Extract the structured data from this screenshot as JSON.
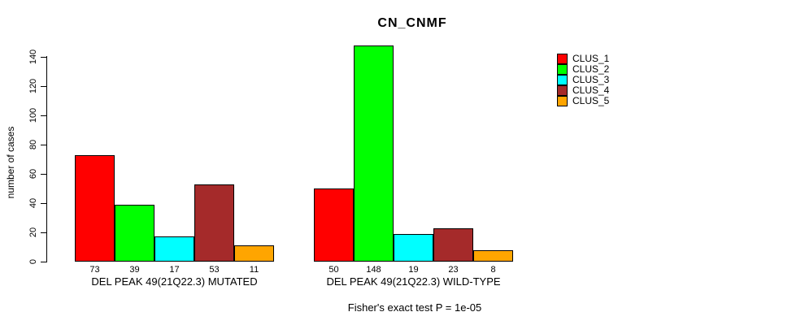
{
  "title": "CN_CNMF",
  "footer": "Fisher's exact test P = 1e-05",
  "chart_data": {
    "type": "bar",
    "title": "CN_CNMF",
    "xlabel": "",
    "ylabel": "number of cases",
    "ylim": [
      0,
      140
    ],
    "yticks": [
      0,
      20,
      40,
      60,
      80,
      100,
      120,
      140
    ],
    "grid": false,
    "legend_position": "right-outside",
    "bar_value_labels": true,
    "categories": [
      "DEL PEAK 49(21Q22.3) MUTATED",
      "DEL PEAK 49(21Q22.3) WILD-TYPE"
    ],
    "series": [
      {
        "name": "CLUS_1",
        "color": "#ff0000",
        "values": [
          73,
          50
        ]
      },
      {
        "name": "CLUS_2",
        "color": "#00ff00",
        "values": [
          39,
          148
        ]
      },
      {
        "name": "CLUS_3",
        "color": "#00ffff",
        "values": [
          17,
          19
        ]
      },
      {
        "name": "CLUS_4",
        "color": "#a52a2a",
        "values": [
          53,
          23
        ]
      },
      {
        "name": "CLUS_5",
        "color": "#ffa500",
        "values": [
          11,
          8
        ]
      }
    ],
    "annotation": "Fisher's exact test P = 1e-05"
  }
}
